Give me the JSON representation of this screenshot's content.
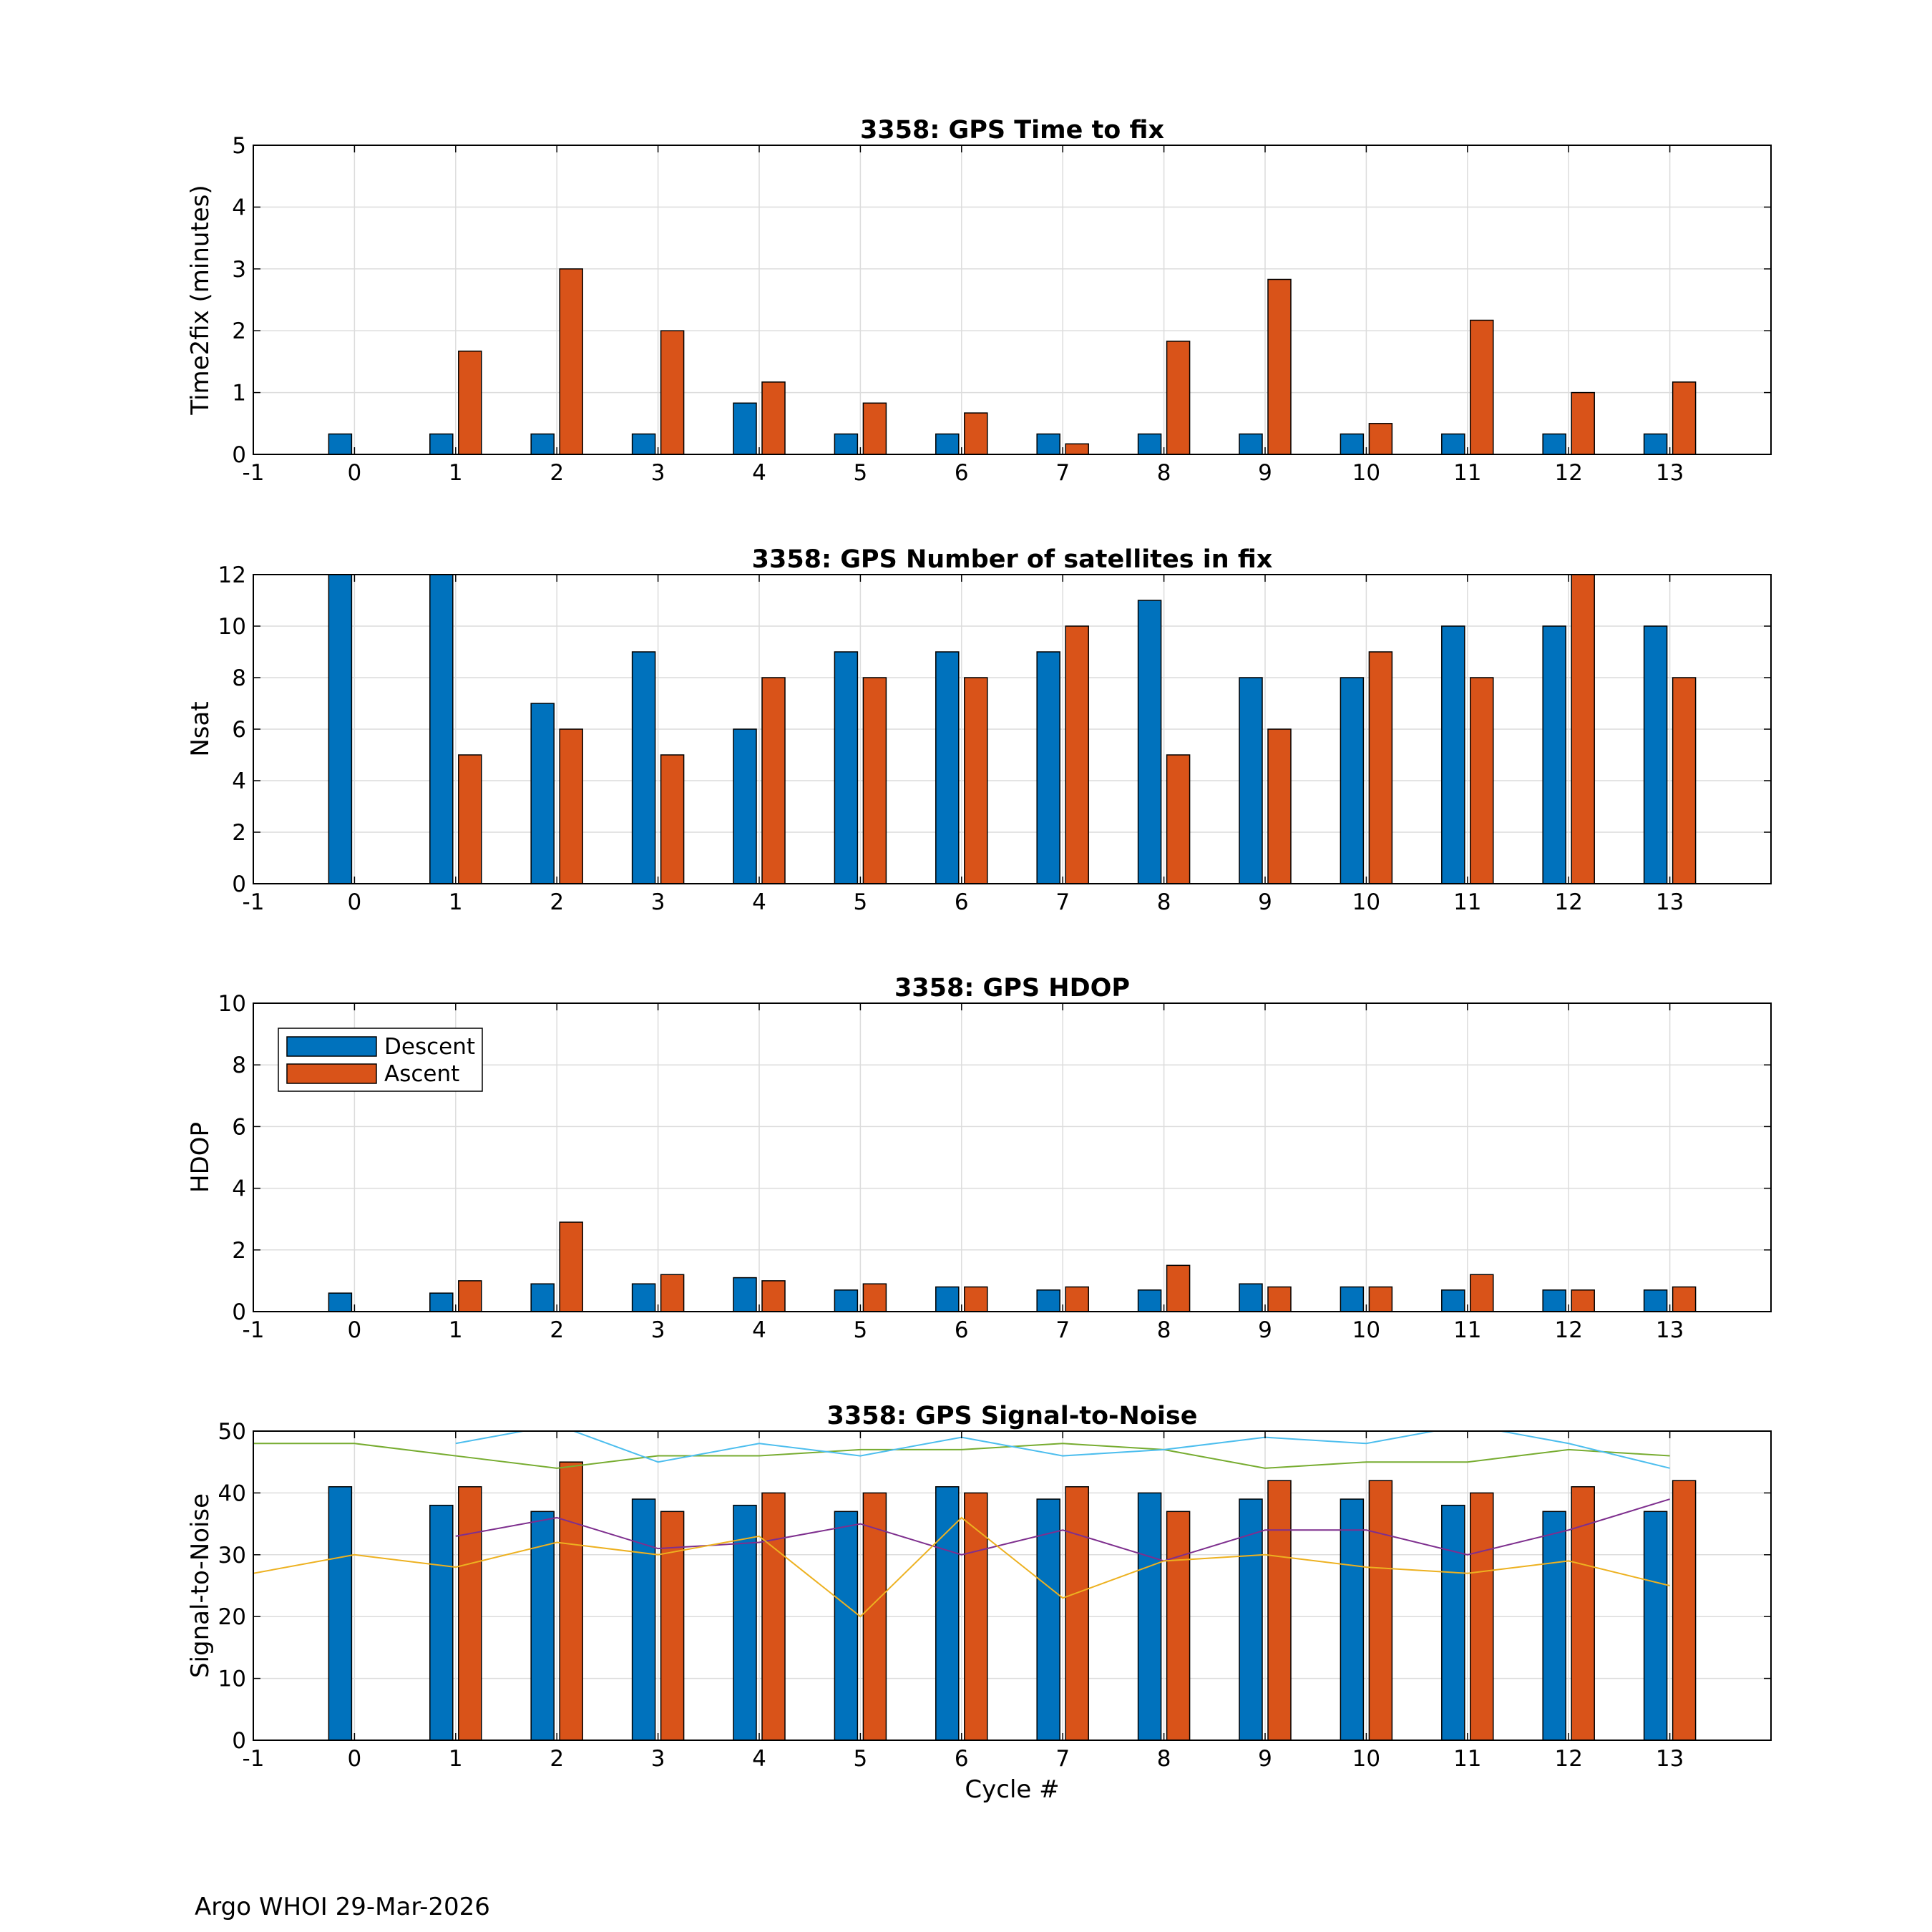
{
  "footer": "Argo WHOI 29-Mar-2026",
  "colors": {
    "descent": "#0072BD",
    "ascent": "#D95319",
    "grid": "#DCDCDC",
    "axis": "#000000"
  },
  "chart_data": [
    {
      "type": "bar",
      "title": "3358: GPS Time to fix",
      "ylabel": "Time2fix (minutes)",
      "xlabel": "",
      "xlim": [
        -1,
        14
      ],
      "ylim": [
        0,
        5
      ],
      "xticks": [
        -1,
        0,
        1,
        2,
        3,
        4,
        5,
        6,
        7,
        8,
        9,
        10,
        11,
        12,
        13
      ],
      "yticks": [
        0,
        1,
        2,
        3,
        4,
        5
      ],
      "grid": true,
      "categories": [
        0,
        1,
        2,
        3,
        4,
        5,
        6,
        7,
        8,
        9,
        10,
        11,
        12,
        13
      ],
      "series": [
        {
          "name": "Descent",
          "values": [
            0.33,
            0.33,
            0.33,
            0.33,
            0.83,
            0.33,
            0.33,
            0.33,
            0.33,
            0.33,
            0.33,
            0.33,
            0.33,
            0.33
          ]
        },
        {
          "name": "Ascent",
          "values": [
            null,
            1.67,
            3.0,
            2.0,
            1.17,
            0.83,
            0.67,
            0.17,
            1.83,
            2.83,
            0.5,
            2.17,
            1.0,
            1.17
          ]
        }
      ]
    },
    {
      "type": "bar",
      "title": "3358: GPS Number of satellites in fix",
      "ylabel": "Nsat",
      "xlabel": "",
      "xlim": [
        -1,
        14
      ],
      "ylim": [
        0,
        12
      ],
      "xticks": [
        -1,
        0,
        1,
        2,
        3,
        4,
        5,
        6,
        7,
        8,
        9,
        10,
        11,
        12,
        13
      ],
      "yticks": [
        0,
        2,
        4,
        6,
        8,
        10,
        12
      ],
      "grid": true,
      "categories": [
        0,
        1,
        2,
        3,
        4,
        5,
        6,
        7,
        8,
        9,
        10,
        11,
        12,
        13
      ],
      "series": [
        {
          "name": "Descent",
          "values": [
            12,
            12,
            7,
            9,
            6,
            9,
            9,
            9,
            11,
            8,
            8,
            10,
            10,
            10
          ]
        },
        {
          "name": "Ascent",
          "values": [
            null,
            5,
            6,
            5,
            8,
            8,
            8,
            10,
            5,
            6,
            9,
            8,
            12,
            8
          ]
        }
      ]
    },
    {
      "type": "bar",
      "title": "3358: GPS HDOP",
      "ylabel": "HDOP",
      "xlabel": "",
      "xlim": [
        -1,
        14
      ],
      "ylim": [
        0,
        10
      ],
      "xticks": [
        -1,
        0,
        1,
        2,
        3,
        4,
        5,
        6,
        7,
        8,
        9,
        10,
        11,
        12,
        13
      ],
      "yticks": [
        0,
        2,
        4,
        6,
        8,
        10
      ],
      "grid": true,
      "legend": {
        "position": "top-left",
        "entries": [
          "Descent",
          "Ascent"
        ]
      },
      "categories": [
        0,
        1,
        2,
        3,
        4,
        5,
        6,
        7,
        8,
        9,
        10,
        11,
        12,
        13
      ],
      "series": [
        {
          "name": "Descent",
          "values": [
            0.6,
            0.6,
            0.9,
            0.9,
            1.1,
            0.7,
            0.8,
            0.7,
            0.7,
            0.9,
            0.8,
            0.7,
            0.7,
            0.7
          ]
        },
        {
          "name": "Ascent",
          "values": [
            null,
            1.0,
            2.9,
            1.2,
            1.0,
            0.9,
            0.8,
            0.8,
            1.5,
            0.8,
            0.8,
            1.2,
            0.7,
            0.8
          ]
        }
      ]
    },
    {
      "type": "bar",
      "title": "3358: GPS Signal-to-Noise",
      "ylabel": "Signal-to-Noise",
      "xlabel": "Cycle #",
      "xlim": [
        -1,
        14
      ],
      "ylim": [
        0,
        50
      ],
      "xticks": [
        -1,
        0,
        1,
        2,
        3,
        4,
        5,
        6,
        7,
        8,
        9,
        10,
        11,
        12,
        13
      ],
      "yticks": [
        0,
        10,
        20,
        30,
        40,
        50
      ],
      "grid": true,
      "categories": [
        0,
        1,
        2,
        3,
        4,
        5,
        6,
        7,
        8,
        9,
        10,
        11,
        12,
        13
      ],
      "series": [
        {
          "name": "Descent",
          "values": [
            41,
            38,
            37,
            39,
            38,
            37,
            41,
            39,
            40,
            39,
            39,
            38,
            37,
            37
          ]
        },
        {
          "name": "Ascent",
          "values": [
            null,
            41,
            45,
            37,
            40,
            40,
            40,
            41,
            37,
            42,
            42,
            40,
            41,
            42
          ]
        }
      ],
      "lines": [
        {
          "color": "#77AC30",
          "x": [
            -1,
            0,
            1,
            2,
            3,
            4,
            5,
            6,
            7,
            8,
            9,
            10,
            11,
            12,
            13
          ],
          "y": [
            48,
            48,
            46,
            44,
            46,
            46,
            47,
            47,
            48,
            47,
            44,
            45,
            45,
            47,
            46
          ]
        },
        {
          "color": "#4DBEEE",
          "x": [
            1,
            2,
            3,
            4,
            5,
            6,
            7,
            8,
            9,
            10,
            11,
            12,
            13
          ],
          "y": [
            48,
            51,
            45,
            48,
            46,
            49,
            46,
            47,
            49,
            48,
            51,
            48,
            44
          ]
        },
        {
          "color": "#7E2F8E",
          "x": [
            1,
            2,
            3,
            4,
            5,
            6,
            7,
            8,
            9,
            10,
            11,
            12,
            13
          ],
          "y": [
            33,
            36,
            31,
            32,
            35,
            30,
            34,
            29,
            34,
            34,
            30,
            34,
            39
          ]
        },
        {
          "color": "#EDB120",
          "x": [
            -1,
            0,
            1,
            2,
            3,
            4,
            5,
            6,
            7,
            8,
            9,
            10,
            11,
            12,
            13
          ],
          "y": [
            27,
            30,
            28,
            32,
            30,
            33,
            20,
            36,
            23,
            29,
            30,
            28,
            27,
            29,
            25
          ]
        }
      ]
    }
  ]
}
